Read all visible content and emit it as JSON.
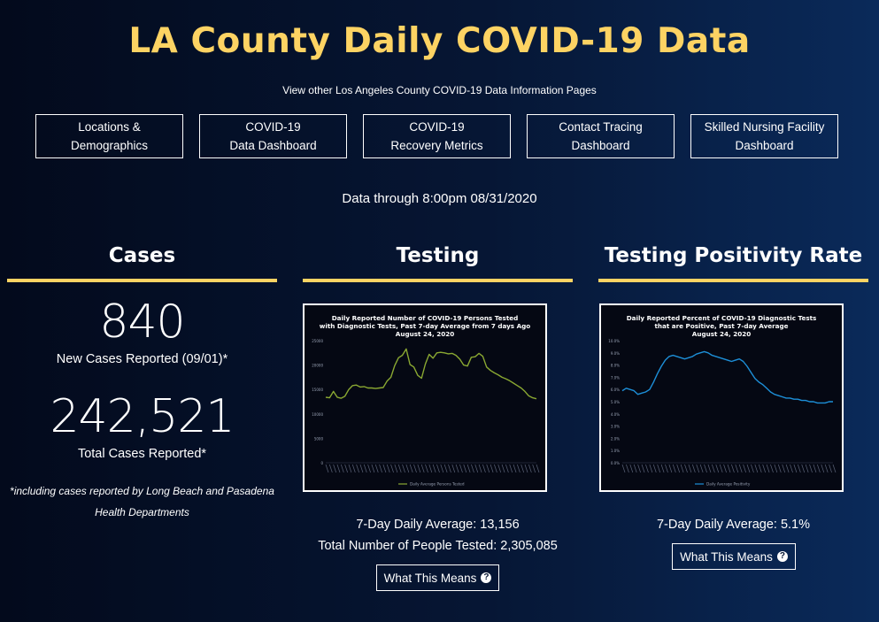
{
  "header": {
    "title": "LA County Daily COVID-19 Data",
    "subtitle": "View other Los Angeles County COVID-19 Data Information Pages",
    "data_through": "Data through 8:00pm 08/31/2020"
  },
  "nav": [
    {
      "line1": "Locations &",
      "line2": "Demographics"
    },
    {
      "line1": "COVID-19",
      "line2": "Data Dashboard"
    },
    {
      "line1": "COVID-19",
      "line2": "Recovery Metrics"
    },
    {
      "line1": "Contact Tracing",
      "line2": "Dashboard"
    },
    {
      "line1": "Skilled Nursing Facility",
      "line2": "Dashboard"
    }
  ],
  "cases": {
    "heading": "Cases",
    "new_value": "840",
    "new_label": "New Cases Reported (09/01)*",
    "total_value": "242,521",
    "total_label": "Total Cases Reported*",
    "footnote_line1": "*including cases reported by Long Beach and Pasadena",
    "footnote_line2": "Health Departments"
  },
  "testing": {
    "heading": "Testing",
    "avg": "7-Day Daily Average: 13,156",
    "total": "Total Number of People Tested: 2,305,085",
    "means_label": "What This Means",
    "chart": {
      "title_lines": [
        "Daily Reported Number of COVID-19 Persons Tested",
        "with Diagnostic Tests, Past 7-day Average from 7 days Ago",
        "August 24, 2020"
      ],
      "y_ticks": [
        "25000",
        "20000",
        "15000",
        "10000",
        "5000",
        "0"
      ],
      "legend": "Daily Average Persons Tested",
      "line_color": "#8aa832"
    }
  },
  "positivity": {
    "heading": "Testing Positivity Rate",
    "avg": "7-Day Daily Average: 5.1%",
    "means_label": "What This Means",
    "chart": {
      "title_lines": [
        "Daily Reported Percent of COVID-19 Diagnostic Tests",
        "that are Positive, Past 7-day Average",
        "August 24, 2020"
      ],
      "y_ticks": [
        "10.0%",
        "9.0%",
        "8.0%",
        "7.0%",
        "6.0%",
        "5.0%",
        "4.0%",
        "3.0%",
        "2.0%",
        "1.0%",
        "0.0%"
      ],
      "legend": "Daily Average Positivity",
      "line_color": "#1d8fd8"
    }
  },
  "chart_data": [
    {
      "type": "line",
      "title": "Daily Reported Number of COVID-19 Persons Tested with Diagnostic Tests, Past 7-day Average from 7 days Ago August 24, 2020",
      "ylim": [
        0,
        25000
      ],
      "series": [
        {
          "name": "Daily Average Persons Tested",
          "values": [
            13400,
            13300,
            14600,
            13400,
            13200,
            13600,
            15000,
            15800,
            15900,
            15500,
            15600,
            15300,
            15300,
            15200,
            15300,
            15400,
            16700,
            17500,
            19900,
            21500,
            22000,
            23300,
            20100,
            19600,
            17900,
            17300,
            20200,
            22200,
            21400,
            22500,
            22600,
            22500,
            22300,
            22400,
            22000,
            21200,
            20000,
            19800,
            21600,
            21700,
            22400,
            21800,
            19600,
            18900,
            18400,
            18000,
            17500,
            17200,
            16800,
            16300,
            15800,
            15300,
            14600,
            13700,
            13300,
            13100
          ]
        }
      ]
    },
    {
      "type": "line",
      "title": "Daily Reported Percent of COVID-19 Diagnostic Tests that are Positive, Past 7-day Average August 24, 2020",
      "ylim": [
        0,
        10
      ],
      "series": [
        {
          "name": "Daily Average Positivity",
          "values": [
            5.9,
            6.1,
            6.0,
            5.9,
            5.6,
            5.7,
            5.8,
            6.0,
            6.6,
            7.3,
            7.9,
            8.4,
            8.7,
            8.8,
            8.7,
            8.6,
            8.5,
            8.6,
            8.7,
            8.9,
            9.0,
            9.1,
            9.0,
            8.8,
            8.7,
            8.6,
            8.5,
            8.4,
            8.3,
            8.4,
            8.5,
            8.3,
            7.9,
            7.4,
            6.9,
            6.6,
            6.4,
            6.1,
            5.8,
            5.6,
            5.5,
            5.4,
            5.3,
            5.3,
            5.2,
            5.2,
            5.1,
            5.1,
            5.0,
            5.0,
            4.9,
            4.9,
            4.9,
            5.0,
            5.0
          ]
        }
      ]
    }
  ]
}
